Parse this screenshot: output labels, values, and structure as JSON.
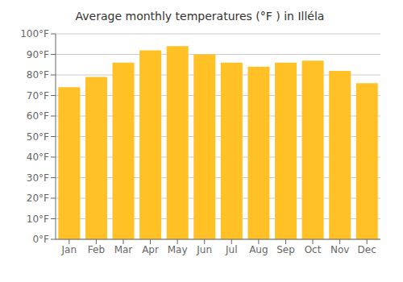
{
  "chart_data": {
    "type": "bar",
    "title": "Average monthly temperatures (°F ) in Illéla",
    "categories": [
      "Jan",
      "Feb",
      "Mar",
      "Apr",
      "May",
      "Jun",
      "Jul",
      "Aug",
      "Sep",
      "Oct",
      "Nov",
      "Dec"
    ],
    "values": [
      74,
      79,
      86,
      92,
      94,
      90,
      86,
      84,
      86,
      87,
      82,
      76
    ],
    "color": "#FFC125",
    "ylim": [
      0,
      100
    ],
    "yticks": [
      {
        "value": 0,
        "label": "0°F"
      },
      {
        "value": 10,
        "label": "10°F"
      },
      {
        "value": 20,
        "label": "20°F"
      },
      {
        "value": 30,
        "label": "30°F"
      },
      {
        "value": 40,
        "label": "40°F"
      },
      {
        "value": 50,
        "label": "50°F"
      },
      {
        "value": 60,
        "label": "60°F"
      },
      {
        "value": 70,
        "label": "70°F"
      },
      {
        "value": 80,
        "label": "80°F"
      },
      {
        "value": 90,
        "label": "90°F"
      },
      {
        "value": 100,
        "label": "100°F"
      }
    ],
    "grid": true
  }
}
